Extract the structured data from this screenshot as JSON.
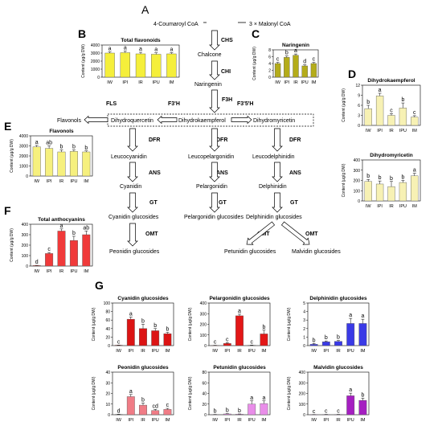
{
  "panel_labels": [
    "A",
    "B",
    "C",
    "D",
    "E",
    "F",
    "G"
  ],
  "pathway": {
    "substrate_left": "4-Coumaroyl CoA",
    "substrate_right": "3 × Malonyl CoA",
    "chalcone": "Chalcone",
    "naringenin": "Naringenin",
    "dihydrokaempferol": "Dihydrokaempferol",
    "dihydroquercetin": "Dihydroquercetin",
    "dihydromyricetin": "Dihydromyricetin",
    "flavonols": "Flavonols",
    "leucocyanidin": "Leucocyanidin",
    "leucopelargonidin": "Leucopelargonidin",
    "leucodelphinidin": "Leucodelphinidin",
    "cyanidin": "Cyanidin",
    "pelargonidin": "Pelargonidin",
    "delphinidin": "Delphinidin",
    "cyanidin_glucosides": "Cyanidin glucosides",
    "pelargonidin_glucosides": "Pelargonidin glucosides",
    "delphinidin_glucosides": "Delphinidin glucosides",
    "peonidin_glucosides": "Peonidin glucosides",
    "petunidin_glucosides": "Petunidin glucosides",
    "malvidin_glucosides": "Malvidin glucosides",
    "enzymes": {
      "chs": "CHS",
      "chi": "CHI",
      "f3h": "F3H",
      "f3prime": "F3'H",
      "f35": "F3'5'H",
      "fls": "FLS",
      "dfr": "DFR",
      "ans": "ANS",
      "gt": "GT",
      "omt": "OMT"
    }
  },
  "colors": {
    "flavonoid_bar": "#f5ef3b",
    "naringenin_bar": "#b4ac1a",
    "dihydro_bar": "#f7f1b4",
    "flavonol_bar": "#f6f07e",
    "anthocyanin_bar": "#f03a3a",
    "cyanidin_bar": "#dc1414",
    "pelargonidin_bar": "#e31717",
    "delphinidin_bar": "#3a3ae6",
    "peonidin_bar": "#f07c86",
    "petunidin_bar": "#e98ee9",
    "malvidin_bar": "#a51fc1"
  },
  "ylabel": "Content (μg/g DW)",
  "chart_data": [
    {
      "id": "B",
      "type": "bar",
      "title": "Total flavonoids",
      "categories": [
        "IW",
        "IPI",
        "IR",
        "IPU",
        "IM"
      ],
      "values": [
        3000,
        3050,
        2900,
        2850,
        2900
      ],
      "errors": [
        150,
        200,
        200,
        180,
        150
      ],
      "letters": [
        "a",
        "a",
        "a",
        "a",
        "a"
      ],
      "ylim": [
        0,
        4000
      ],
      "ticks": [
        0,
        1000,
        2000,
        3000,
        4000
      ],
      "ylabel": "Content (μg/g DW)"
    },
    {
      "id": "C",
      "type": "bar",
      "title": "Naringenin",
      "categories": [
        "IW",
        "IPI",
        "IR",
        "IPU",
        "IM"
      ],
      "values": [
        4.0,
        5.8,
        6.4,
        3.3,
        4.0
      ],
      "errors": [
        0.3,
        0.4,
        0.4,
        0.3,
        0.3
      ],
      "letters": [
        "c",
        "b",
        "a",
        "d",
        "c"
      ],
      "ylim": [
        0,
        8
      ],
      "ticks": [
        0,
        2,
        4,
        6,
        8
      ],
      "ylabel": "Content (μg/g DW)"
    },
    {
      "id": "D1",
      "type": "bar",
      "title": "Dihydrokaempferol",
      "categories": [
        "IW",
        "IPI",
        "IR",
        "IPU",
        "IM"
      ],
      "values": [
        5.0,
        8.8,
        3.0,
        5.2,
        2.5
      ],
      "errors": [
        1.0,
        0.8,
        0.5,
        1.5,
        0.4
      ],
      "letters": [
        "b",
        "a",
        "c",
        "b",
        "c"
      ],
      "ylim": [
        0,
        12
      ],
      "ticks": [
        0,
        3,
        6,
        9,
        12
      ],
      "ylabel": "Content (μg/g DW)"
    },
    {
      "id": "D2",
      "type": "bar",
      "title": "Dihydromyricetin",
      "categories": [
        "IW",
        "IPI",
        "IR",
        "IPU",
        "IM"
      ],
      "values": [
        190,
        165,
        140,
        180,
        245
      ],
      "errors": [
        20,
        30,
        50,
        20,
        25
      ],
      "letters": [
        "b",
        "b",
        "b",
        "b",
        "a"
      ],
      "ylim": [
        0,
        400
      ],
      "ticks": [
        0,
        100,
        200,
        300,
        400
      ],
      "ylabel": "Content (μg/g DW)"
    },
    {
      "id": "E",
      "type": "bar",
      "title": "Flavonols",
      "categories": [
        "IW",
        "IPI",
        "IR",
        "IPU",
        "IM"
      ],
      "values": [
        2900,
        2750,
        2400,
        2450,
        2400
      ],
      "errors": [
        150,
        250,
        200,
        150,
        100
      ],
      "letters": [
        "a",
        "ab",
        "b",
        "b",
        "b"
      ],
      "ylim": [
        0,
        4000
      ],
      "ticks": [
        0,
        1000,
        2000,
        3000,
        4000
      ],
      "ylabel": "Content (μg/g DW)"
    },
    {
      "id": "F",
      "type": "bar",
      "title": "Total anthocyanins",
      "categories": [
        "IW",
        "IPI",
        "IR",
        "IPU",
        "IM"
      ],
      "values": [
        5,
        120,
        335,
        245,
        300
      ],
      "errors": [
        2,
        10,
        20,
        40,
        35
      ],
      "letters": [
        "d",
        "c",
        "a",
        "b",
        "ab"
      ],
      "ylim": [
        0,
        400
      ],
      "ticks": [
        0,
        100,
        200,
        300,
        400
      ],
      "ylabel": "Content (μg/g DW)"
    },
    {
      "id": "G1",
      "type": "bar",
      "title": "Cyanidin glucosides",
      "categories": [
        "IW",
        "IPI",
        "IR",
        "IPU",
        "IM"
      ],
      "values": [
        1,
        62,
        40,
        35,
        28
      ],
      "errors": [
        0.3,
        5,
        10,
        5,
        3
      ],
      "letters": [
        "c",
        "a",
        "b",
        "b",
        "b"
      ],
      "ylim": [
        0,
        100
      ],
      "ticks": [
        0,
        20,
        40,
        60,
        80,
        100
      ],
      "ylabel": "Content (μg/g DW)"
    },
    {
      "id": "G2",
      "type": "bar",
      "title": "Pelargonidin glucosides",
      "categories": [
        "IW",
        "IPI",
        "IR",
        "IPU",
        "IM"
      ],
      "values": [
        2,
        20,
        280,
        3,
        110
      ],
      "errors": [
        1,
        8,
        15,
        2,
        35
      ],
      "letters": [
        "c",
        "c",
        "a",
        "c",
        "b"
      ],
      "ylim": [
        0,
        400
      ],
      "ticks": [
        0,
        100,
        200,
        300,
        400
      ],
      "ylabel": "Content (μg/g DW)"
    },
    {
      "id": "G3",
      "type": "bar",
      "title": "Delphinidin glucosides",
      "categories": [
        "IW",
        "IPI",
        "IR",
        "IPU",
        "IM"
      ],
      "values": [
        0.15,
        0.45,
        0.5,
        2.6,
        2.6
      ],
      "errors": [
        0.1,
        0.1,
        0.1,
        0.6,
        0.5
      ],
      "letters": [
        "b",
        "b",
        "b",
        "a",
        "a"
      ],
      "ylim": [
        0,
        5
      ],
      "ticks": [
        0,
        1,
        2,
        3,
        4,
        5
      ],
      "ylabel": "Content (μg/g DW)"
    },
    {
      "id": "G4",
      "type": "bar",
      "title": "Peonidin glucosides",
      "categories": [
        "IW",
        "IPI",
        "IR",
        "IPU",
        "IM"
      ],
      "values": [
        0.3,
        17,
        9,
        4,
        5
      ],
      "errors": [
        0.2,
        2,
        2,
        1,
        1
      ],
      "letters": [
        "d",
        "a",
        "b",
        "cd",
        "c"
      ],
      "ylim": [
        0,
        40
      ],
      "ticks": [
        0,
        10,
        20,
        30,
        40
      ],
      "ylabel": "Content (μg/g DW)"
    },
    {
      "id": "G5",
      "type": "bar",
      "title": "Petunidin glucosides",
      "categories": [
        "IW",
        "IPI",
        "IR",
        "IPU",
        "IM"
      ],
      "values": [
        0.3,
        1.5,
        1.0,
        20,
        21
      ],
      "errors": [
        0.2,
        0.5,
        0.5,
        6,
        5
      ],
      "letters": [
        "b",
        "b",
        "b",
        "a",
        "a"
      ],
      "ylim": [
        0,
        80
      ],
      "ticks": [
        0,
        20,
        40,
        60,
        80
      ],
      "ylabel": "Content (μg/g DW)"
    },
    {
      "id": "G6",
      "type": "bar",
      "title": "Malvidin glucosides",
      "categories": [
        "IW",
        "IPI",
        "IR",
        "IPU",
        "IM"
      ],
      "values": [
        1,
        2,
        2,
        178,
        135
      ],
      "errors": [
        0.5,
        1,
        1,
        25,
        20
      ],
      "letters": [
        "c",
        "c",
        "c",
        "a",
        "b"
      ],
      "ylim": [
        0,
        400
      ],
      "ticks": [
        0,
        100,
        200,
        300,
        400
      ],
      "ylabel": "Content (μg/g DW)"
    }
  ]
}
